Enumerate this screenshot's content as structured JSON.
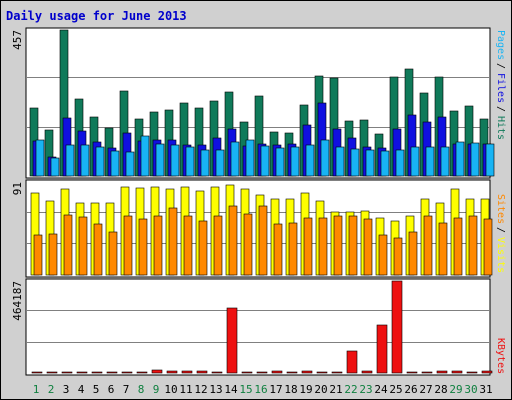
{
  "colors": {
    "background": "#d0d0d0",
    "panel": "#ffffff",
    "grid": "#808080",
    "title": "#0000cc",
    "hits": "#107a5a",
    "files": "#1010e0",
    "pages": "#18b4f4",
    "visits": "#ffff00",
    "sites": "#ff8800",
    "kbytes": "#ee1111",
    "weekend_day": "#108040",
    "weekday": "#000000"
  },
  "chart_data": {
    "title": "Daily usage for June 2013",
    "type": "bar",
    "categories": [
      "1",
      "2",
      "3",
      "4",
      "5",
      "6",
      "7",
      "8",
      "9",
      "10",
      "11",
      "12",
      "13",
      "14",
      "15",
      "16",
      "17",
      "18",
      "19",
      "20",
      "21",
      "22",
      "23",
      "24",
      "25",
      "26",
      "27",
      "28",
      "29",
      "30",
      "31"
    ],
    "weekend_days": [
      "1",
      "2",
      "8",
      "9",
      "15",
      "16",
      "22",
      "23",
      "29",
      "30"
    ],
    "panels": [
      {
        "name": "hits-files-pages",
        "max_label": "457",
        "ymax": 457,
        "series": [
          {
            "name": "Hits",
            "values": [
              212,
              143,
              457,
              240,
              185,
              149,
              265,
              178,
              200,
              207,
              227,
              214,
              235,
              262,
              168,
              251,
              138,
              136,
              222,
              314,
              306,
              171,
              176,
              130,
              311,
              334,
              260,
              311,
              205,
              220,
              179
            ]
          },
          {
            "name": "Files",
            "values": [
              108,
              60,
              180,
              140,
              105,
              88,
              135,
              110,
              114,
              112,
              97,
              97,
              118,
              148,
              93,
              100,
              98,
              100,
              160,
              228,
              147,
              119,
              90,
              88,
              148,
              190,
              170,
              185,
              100,
              100,
              100
            ]
          },
          {
            "name": "Pages",
            "values": [
              112,
              55,
              96,
              96,
              90,
              78,
              74,
              125,
              100,
              97,
              90,
              82,
              81,
              105,
              112,
              95,
              88,
              90,
              96,
              114,
              90,
              85,
              82,
              78,
              80,
              90,
              90,
              90,
              105,
              102,
              100
            ]
          }
        ],
        "legend": [
          "Pages",
          "Files",
          "Hits"
        ]
      },
      {
        "name": "visits-sites",
        "max_label": "91",
        "ymax": 91,
        "series": [
          {
            "name": "Visits",
            "values": [
              80,
              72,
              84,
              70,
              70,
              70,
              86,
              85,
              86,
              84,
              86,
              82,
              86,
              88,
              84,
              78,
              74,
              74,
              80,
              72,
              62,
              62,
              63,
              56,
              53,
              58,
              74,
              70,
              84,
              74,
              74
            ]
          },
          {
            "name": "Sites",
            "values": [
              39,
              40,
              59,
              57,
              50,
              42,
              58,
              55,
              58,
              66,
              58,
              53,
              58,
              68,
              60,
              68,
              50,
              51,
              56,
              56,
              58,
              58,
              55,
              39,
              36,
              42,
              58,
              51,
              56,
              58,
              55
            ]
          }
        ],
        "legend": [
          "Sites",
          "Visits"
        ]
      },
      {
        "name": "kbytes",
        "max_label": "464187",
        "ymax": 464187,
        "series": [
          {
            "name": "KBytes",
            "values": [
              5000,
              5500,
              7000,
              7000,
              5500,
              7000,
              6000,
              5500,
              14000,
              8000,
              9000,
              9000,
              7000,
              329000,
              7000,
              5000,
              12000,
              7000,
              12000,
              6000,
              5000,
              110000,
              12000,
              244000,
              464187,
              7000,
              6000,
              8000,
              9000,
              7000,
              11000
            ]
          }
        ],
        "legend": [
          "KBytes"
        ]
      }
    ]
  }
}
